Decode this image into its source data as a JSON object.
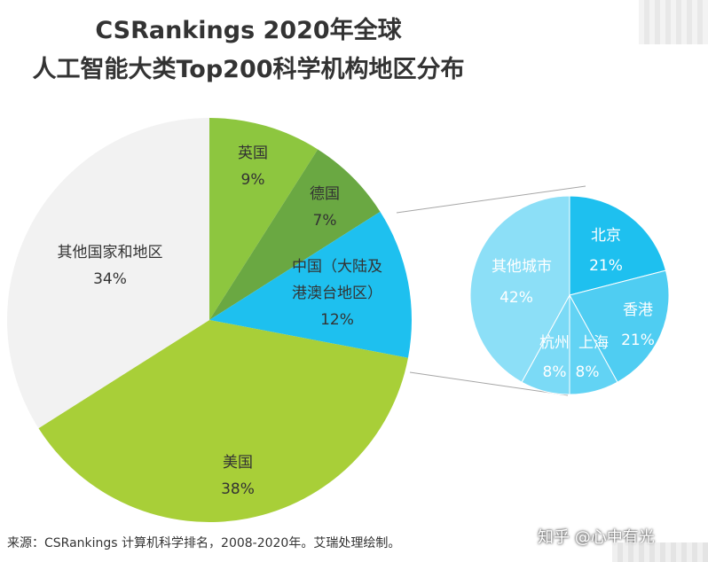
{
  "title_line1": "CSRankings  2020年全球",
  "title_line2": "人工智能大类Top200科学机构地区分布",
  "chart_data": [
    {
      "type": "pie",
      "slices": [
        {
          "label_lines": [
            "英国"
          ],
          "value": 9,
          "value_text": "9%",
          "color": "#8dc63f"
        },
        {
          "label_lines": [
            "德国"
          ],
          "value": 7,
          "value_text": "7%",
          "color": "#6aa842"
        },
        {
          "label_lines": [
            "中国（大陆及",
            "港澳台地区）"
          ],
          "value": 12,
          "value_text": "12%",
          "color": "#1ec0ef"
        },
        {
          "label_lines": [
            "美国"
          ],
          "value": 38,
          "value_text": "38%",
          "color": "#a8cf38"
        },
        {
          "label_lines": [
            "其他国家和地区"
          ],
          "value": 34,
          "value_text": "34%",
          "color": "#f2f2f2"
        }
      ]
    },
    {
      "type": "pie",
      "slices": [
        {
          "label_lines": [
            "北京"
          ],
          "value": 21,
          "value_text": "21%",
          "color": "#1ec0ef"
        },
        {
          "label_lines": [
            "香港"
          ],
          "value": 21,
          "value_text": "21%",
          "color": "#4fcdf2"
        },
        {
          "label_lines": [
            "上海"
          ],
          "value": 8,
          "value_text": "8%",
          "color": "#62d3f4"
        },
        {
          "label_lines": [
            "杭州"
          ],
          "value": 8,
          "value_text": "8%",
          "color": "#7bdaf6"
        },
        {
          "label_lines": [
            "其他城市"
          ],
          "value": 42,
          "value_text": "42%",
          "color": "#8cdff7"
        }
      ]
    }
  ],
  "source": "来源：CSRankings 计算机科学排名，2008-2020年。艾瑞处理绘制。",
  "watermark": "知乎 @心中有光"
}
